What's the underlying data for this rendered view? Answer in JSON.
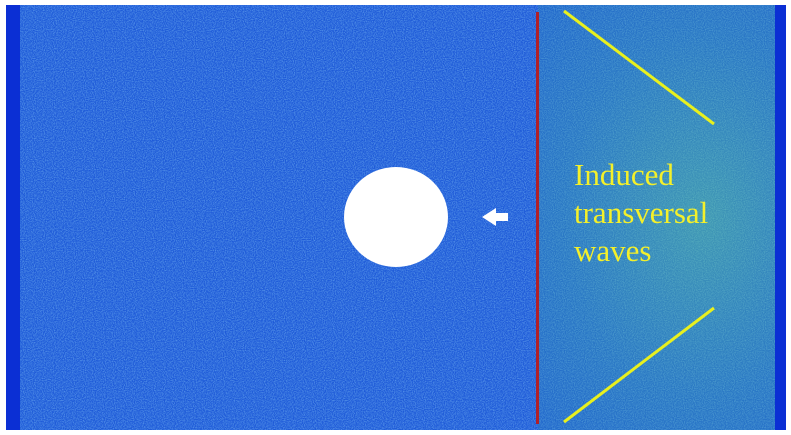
{
  "annotation": {
    "line1": "Induced",
    "line2": "transversal",
    "line3": "waves"
  },
  "colors": {
    "background": "#1e5ad8",
    "edge_blue": "#0b2fd4",
    "wave_region": "#4fbf9a",
    "shock_line": "#b0202a",
    "obstacle": "#ffffff",
    "arrow": "#ffffff",
    "wave_lines": "#e8f01e",
    "annotation_text": "#f4f02a"
  },
  "icons": {
    "arrow": "left-arrow-icon"
  }
}
